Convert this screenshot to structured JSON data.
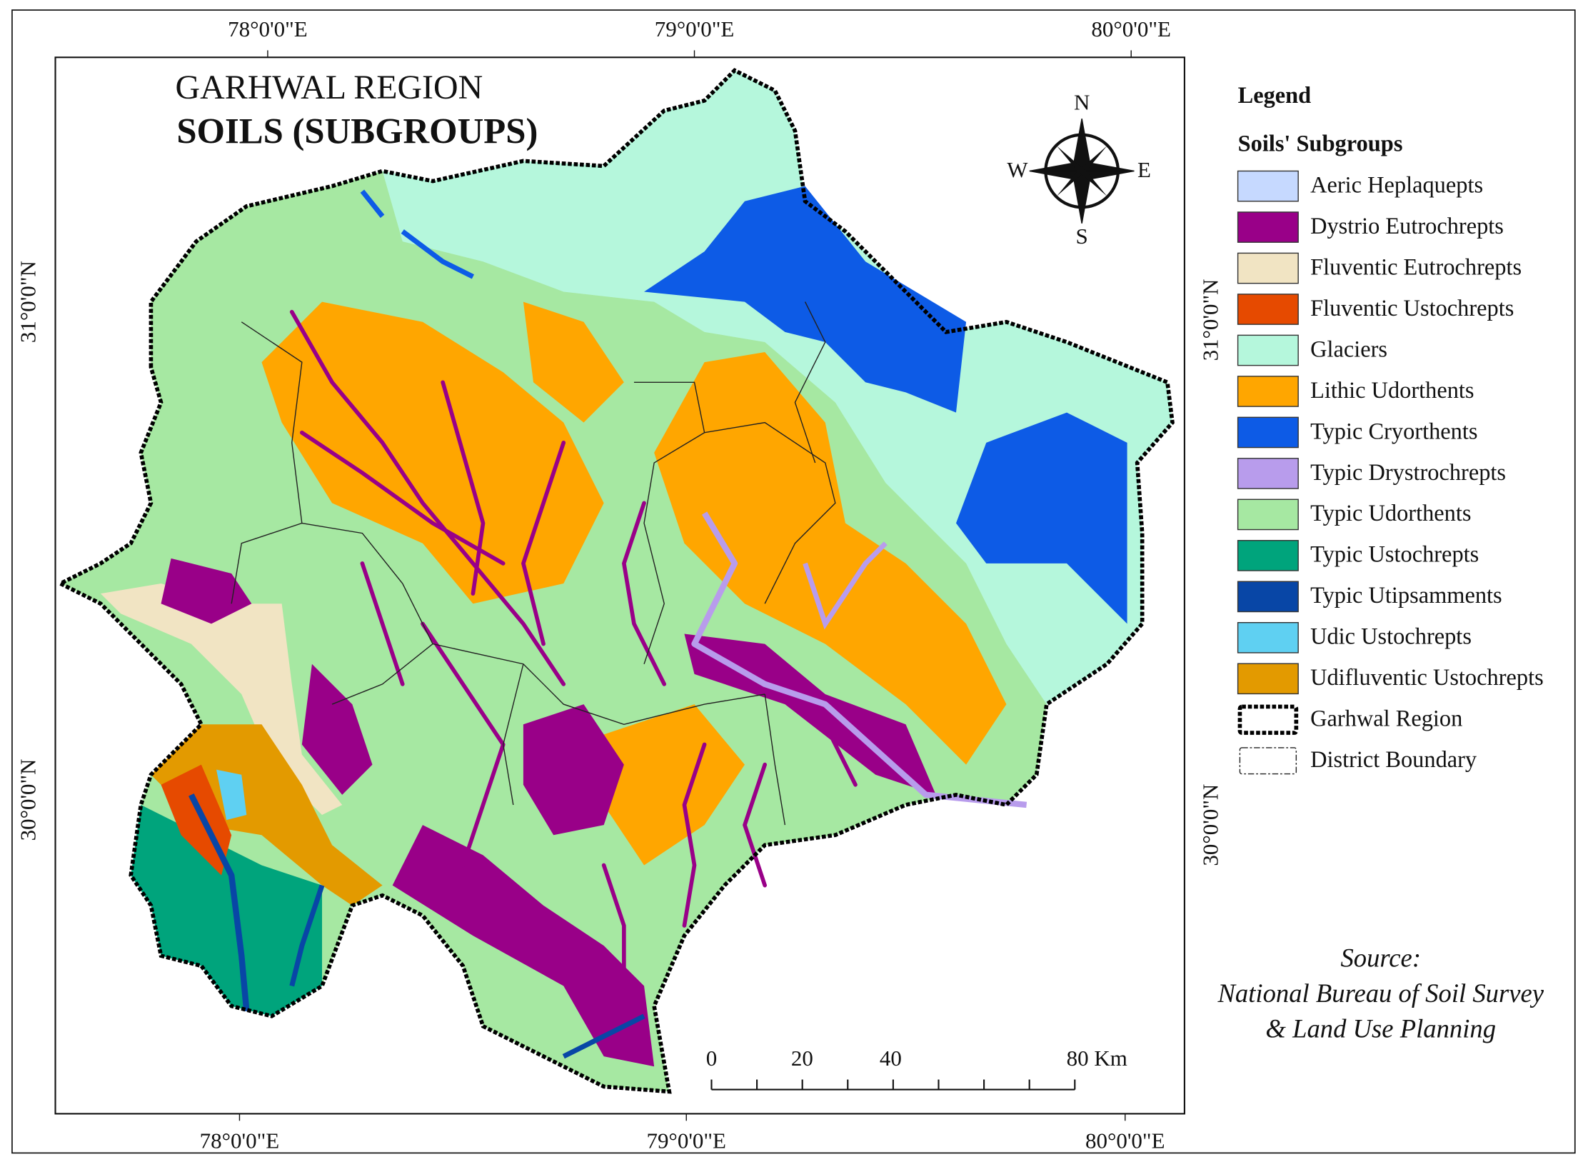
{
  "title": "GARHWAL REGION",
  "subtitle": "SOILS (SUBGROUPS)",
  "compass": {
    "north": "N",
    "south": "S",
    "east": "E",
    "west": "W"
  },
  "coordinates": {
    "top": [
      "78°0'0\"E",
      "79°0'0\"E",
      "80°0'0\"E"
    ],
    "bottom": [
      "78°0'0\"E",
      "79°0'0\"E",
      "80°0'0\"E"
    ],
    "left": [
      "31°0'0\"N",
      "30°0'0\"N"
    ],
    "right": [
      "31°0'0\"N",
      "30°0'0\"N"
    ]
  },
  "legend": {
    "title": "Legend",
    "subtitle": "Soils' Subgroups",
    "items": [
      {
        "name": "Aeric Heplaquepts",
        "color": "#c6d9ff"
      },
      {
        "name": "Dystrio Eutrochrepts",
        "color": "#990088"
      },
      {
        "name": "Fluventic Eutrochrepts",
        "color": "#f1e4c3"
      },
      {
        "name": "Fluventic Ustochrepts",
        "color": "#e64a00"
      },
      {
        "name": "Glaciers",
        "color": "#b5f7dc"
      },
      {
        "name": "Lithic Udorthents",
        "color": "#ffa600"
      },
      {
        "name": "Typic Cryorthents",
        "color": "#0d5be6"
      },
      {
        "name": "Typic Drystrochrepts",
        "color": "#b89cec"
      },
      {
        "name": "Typic Udorthents",
        "color": "#a6e8a2"
      },
      {
        "name": "Typic Ustochrepts",
        "color": "#00a47c"
      },
      {
        "name": "Typic Utipsamments",
        "color": "#0846a6"
      },
      {
        "name": "Udic Ustochrepts",
        "color": "#5fd0f2"
      },
      {
        "name": "Udifluventic Ustochrepts",
        "color": "#e39a00"
      }
    ],
    "boundaries": [
      "Garhwal Region",
      "District Boundary"
    ]
  },
  "scale_bar": [
    "0",
    "20",
    "40",
    "80 Km"
  ],
  "source": [
    "Source:",
    "National Bureau of Soil Survey",
    "& Land Use Planning"
  ]
}
